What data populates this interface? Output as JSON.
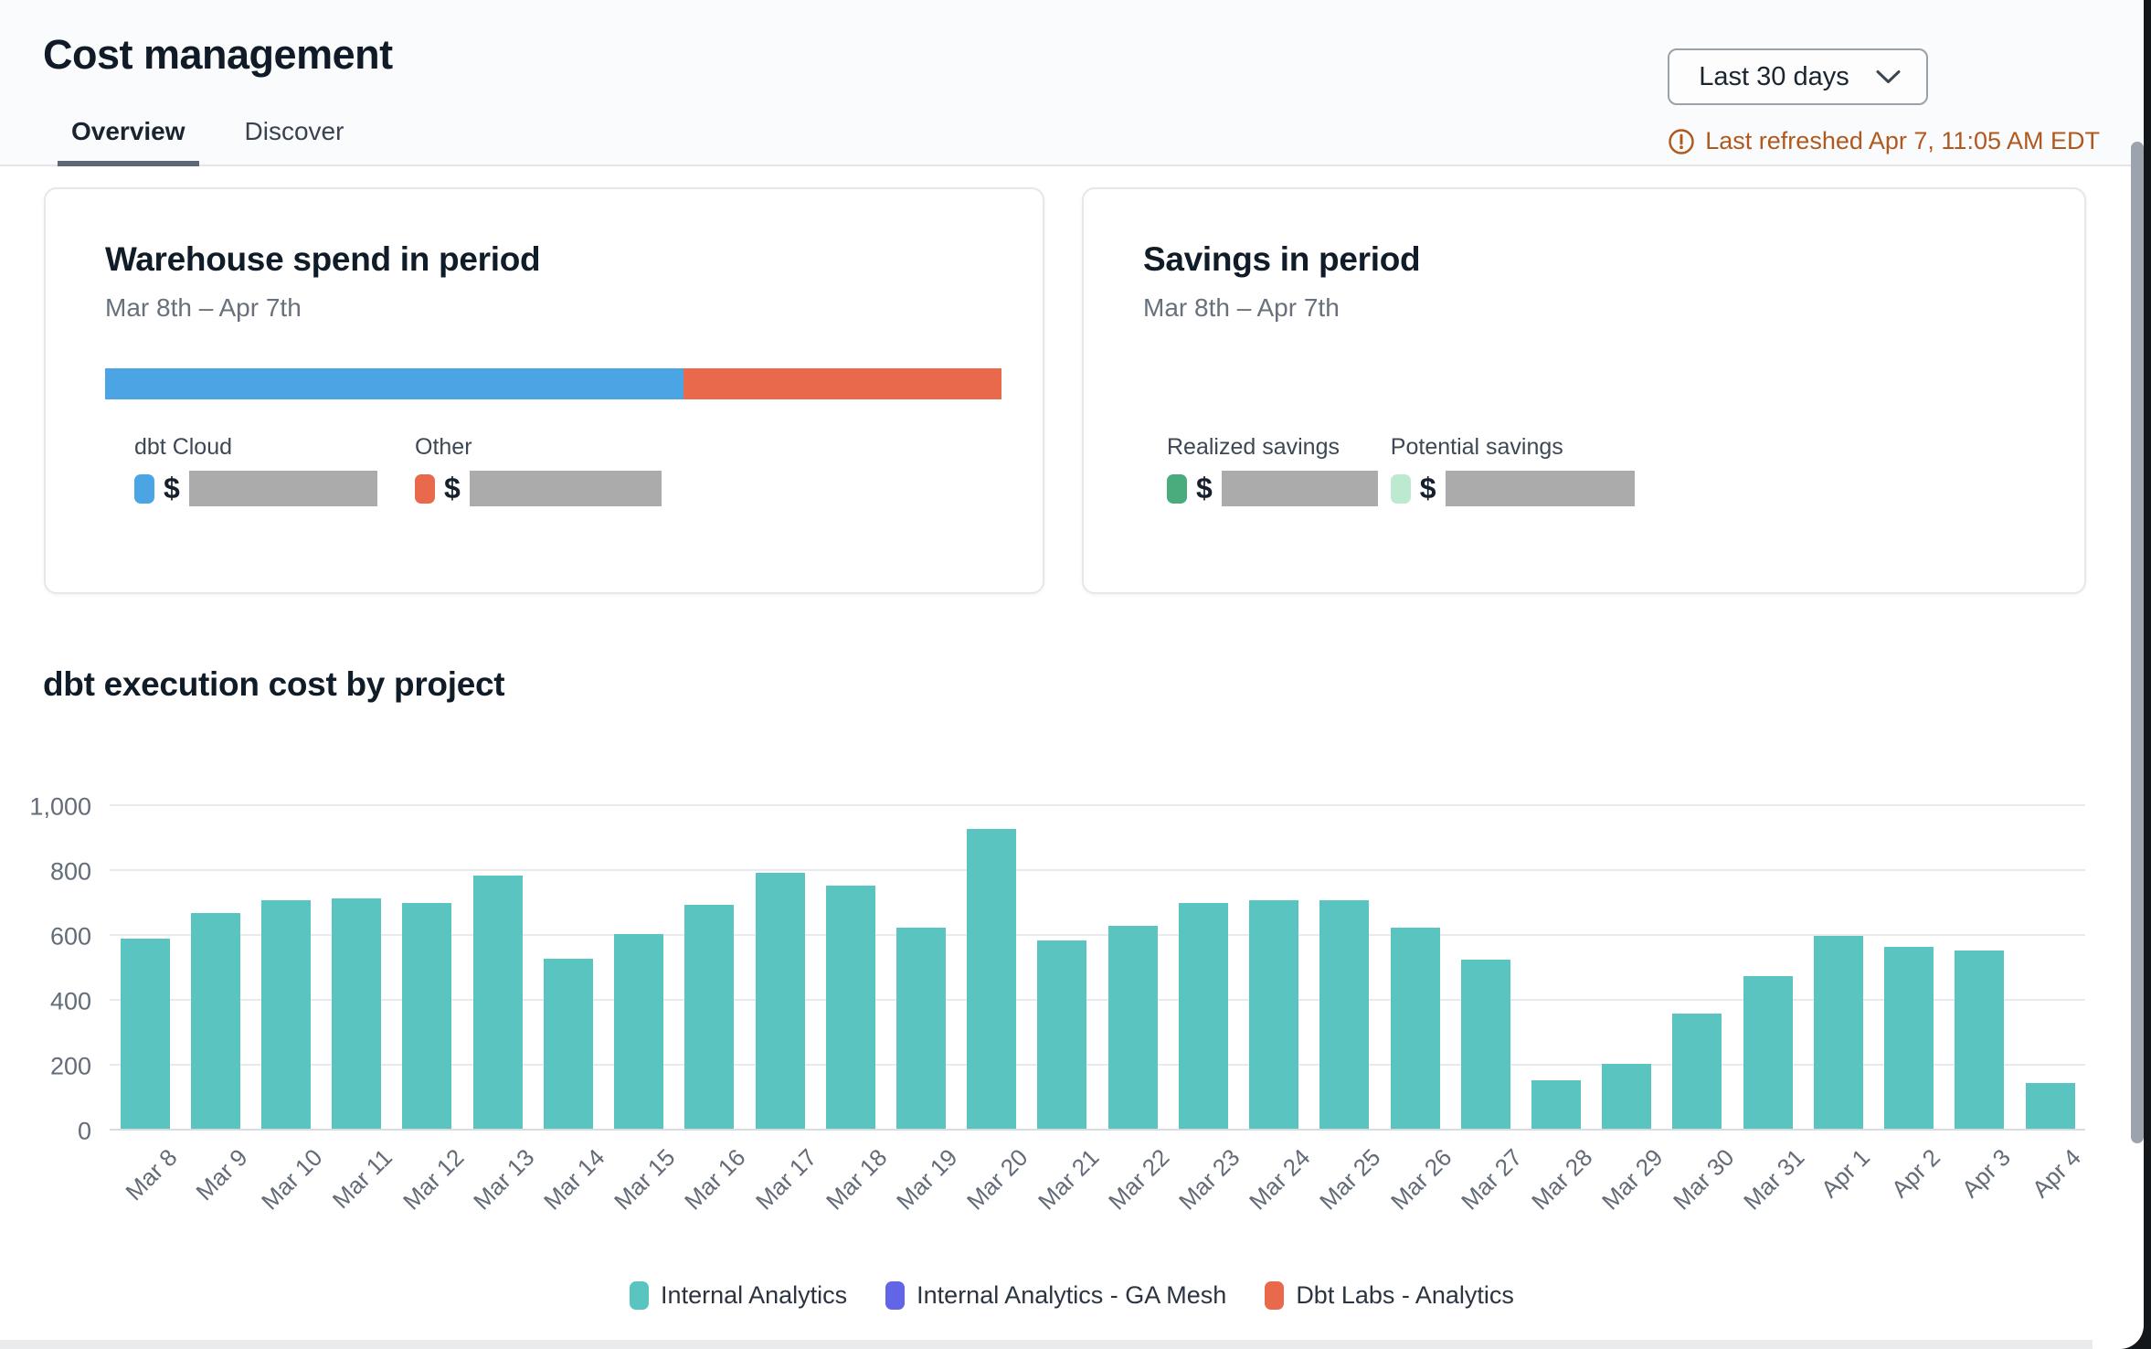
{
  "header": {
    "title": "Cost management",
    "tabs": [
      {
        "label": "Overview",
        "active": true
      },
      {
        "label": "Discover",
        "active": false
      }
    ],
    "date_range_selector": {
      "value": "Last 30 days"
    },
    "last_refreshed": "Last refreshed Apr 7, 11:05 AM EDT",
    "status_color": "#b0591e"
  },
  "cards": {
    "warehouse_spend": {
      "title": "Warehouse spend in period",
      "period": "Mar 8th – Apr 7th",
      "bar_segments": [
        {
          "label": "dbt Cloud",
          "color": "#4ba5e5",
          "fraction": 0.645
        },
        {
          "label": "Other",
          "color": "#e8694b",
          "fraction": 0.355
        }
      ],
      "legend": [
        {
          "label": "dbt Cloud",
          "color": "#4ba5e5",
          "value_prefix": "$",
          "value_hidden": true
        },
        {
          "label": "Other",
          "color": "#e8694b",
          "value_prefix": "$",
          "value_hidden": true
        }
      ]
    },
    "savings": {
      "title": "Savings in period",
      "period": "Mar 8th – Apr 7th",
      "legend": [
        {
          "label": "Realized savings",
          "color": "#4aab7d",
          "value_prefix": "$",
          "value_hidden": true
        },
        {
          "label": "Potential savings",
          "color": "#bbead1",
          "value_prefix": "$",
          "value_hidden": true
        }
      ]
    }
  },
  "chart_section": {
    "title": "dbt execution cost by project"
  },
  "chart_data": {
    "type": "bar",
    "title": "dbt execution cost by project",
    "categories": [
      "Mar 8",
      "Mar 9",
      "Mar 10",
      "Mar 11",
      "Mar 12",
      "Mar 13",
      "Mar 14",
      "Mar 15",
      "Mar 16",
      "Mar 17",
      "Mar 18",
      "Mar 19",
      "Mar 20",
      "Mar 21",
      "Mar 22",
      "Mar 23",
      "Mar 24",
      "Mar 25",
      "Mar 26",
      "Mar 27",
      "Mar 28",
      "Mar 29",
      "Mar 30",
      "Mar 31",
      "Apr 1",
      "Apr 2",
      "Apr 3",
      "Apr 4"
    ],
    "series": [
      {
        "name": "Internal Analytics",
        "color": "#5ac4c1",
        "values": [
          585,
          665,
          705,
          710,
          695,
          780,
          525,
          600,
          690,
          790,
          750,
          620,
          925,
          580,
          625,
          695,
          705,
          705,
          620,
          520,
          150,
          200,
          355,
          470,
          595,
          560,
          550,
          140
        ]
      },
      {
        "name": "Internal Analytics - GA Mesh",
        "color": "#6165e6",
        "values": []
      },
      {
        "name": "Dbt Labs - Analytics",
        "color": "#e8694b",
        "values": []
      }
    ],
    "xlabel": "",
    "ylabel": "",
    "ylim": [
      0,
      1000
    ],
    "yticks": [
      0,
      200,
      400,
      600,
      800,
      1000
    ],
    "ytick_labels": [
      "0",
      "200",
      "400",
      "600",
      "800",
      "1,000"
    ],
    "grid": true,
    "legend_position": "bottom"
  }
}
